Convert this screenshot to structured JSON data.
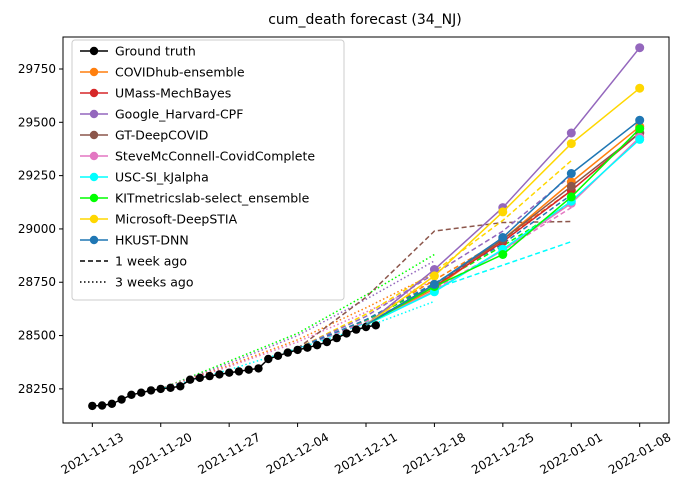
{
  "chart_data": {
    "type": "line",
    "title": "cum_death forecast (34_NJ)",
    "xlabel": "",
    "ylabel": "",
    "x_ticks": [
      "2021-11-13",
      "2021-11-20",
      "2021-11-27",
      "2021-12-04",
      "2021-12-11",
      "2021-12-18",
      "2021-12-25",
      "2022-01-01",
      "2022-01-08"
    ],
    "y_ticks": [
      28250,
      28500,
      28750,
      29000,
      29250,
      29500,
      29750
    ],
    "xlim": [
      "2021-11-10",
      "2022-01-11"
    ],
    "ylim": [
      28090,
      29900
    ],
    "grid": false,
    "legend_position": "top-left",
    "ground_truth": {
      "name": "Ground truth",
      "color": "#000000",
      "points": [
        [
          "2021-11-13",
          28170
        ],
        [
          "2021-11-14",
          28172
        ],
        [
          "2021-11-15",
          28180
        ],
        [
          "2021-11-16",
          28200
        ],
        [
          "2021-11-17",
          28222
        ],
        [
          "2021-11-18",
          28232
        ],
        [
          "2021-11-19",
          28243
        ],
        [
          "2021-11-20",
          28250
        ],
        [
          "2021-11-21",
          28255
        ],
        [
          "2021-11-22",
          28262
        ],
        [
          "2021-11-23",
          28293
        ],
        [
          "2021-11-24",
          28302
        ],
        [
          "2021-11-25",
          28310
        ],
        [
          "2021-11-26",
          28318
        ],
        [
          "2021-11-27",
          28326
        ],
        [
          "2021-11-28",
          28332
        ],
        [
          "2021-11-29",
          28340
        ],
        [
          "2021-11-30",
          28346
        ],
        [
          "2021-12-01",
          28390
        ],
        [
          "2021-12-02",
          28405
        ],
        [
          "2021-12-03",
          28420
        ],
        [
          "2021-12-04",
          28433
        ],
        [
          "2021-12-05",
          28443
        ],
        [
          "2021-12-06",
          28455
        ],
        [
          "2021-12-07",
          28470
        ],
        [
          "2021-12-08",
          28488
        ],
        [
          "2021-12-09",
          28510
        ],
        [
          "2021-12-10",
          28528
        ],
        [
          "2021-12-11",
          28540
        ],
        [
          "2021-12-12",
          28548
        ]
      ]
    },
    "forecasts": [
      {
        "name": "COVIDhub-ensemble",
        "color": "#ff7f0e",
        "points": [
          [
            "2021-12-11",
            28550
          ],
          [
            "2021-12-18",
            28720
          ],
          [
            "2021-12-25",
            28950
          ],
          [
            "2022-01-01",
            29220
          ],
          [
            "2022-01-08",
            29480
          ]
        ]
      },
      {
        "name": "UMass-MechBayes",
        "color": "#d62728",
        "points": [
          [
            "2021-12-11",
            28550
          ],
          [
            "2021-12-18",
            28730
          ],
          [
            "2021-12-25",
            28940
          ],
          [
            "2022-01-01",
            29180
          ],
          [
            "2022-01-08",
            29450
          ]
        ]
      },
      {
        "name": "Google_Harvard-CPF",
        "color": "#9467bd",
        "points": [
          [
            "2021-12-11",
            28550
          ],
          [
            "2021-12-18",
            28810
          ],
          [
            "2021-12-25",
            29100
          ],
          [
            "2022-01-01",
            29450
          ],
          [
            "2022-01-08",
            29850
          ]
        ]
      },
      {
        "name": "GT-DeepCOVID",
        "color": "#8c564b",
        "points": [
          [
            "2021-12-11",
            28550
          ],
          [
            "2021-12-18",
            28740
          ],
          [
            "2021-12-25",
            28950
          ],
          [
            "2022-01-01",
            29200
          ],
          [
            "2022-01-08",
            29450
          ]
        ]
      },
      {
        "name": "SteveMcConnell-CovidComplete",
        "color": "#e377c2",
        "points": [
          [
            "2021-12-11",
            28550
          ],
          [
            "2021-12-18",
            28710
          ],
          [
            "2021-12-25",
            28900
          ],
          [
            "2022-01-01",
            29120
          ],
          [
            "2022-01-08",
            29430
          ]
        ]
      },
      {
        "name": "USC-SI_kJalpha",
        "color": "#00ffff",
        "points": [
          [
            "2021-12-11",
            28550
          ],
          [
            "2021-12-18",
            28705
          ],
          [
            "2021-12-25",
            28905
          ],
          [
            "2022-01-01",
            29130
          ],
          [
            "2022-01-08",
            29420
          ]
        ]
      },
      {
        "name": "KITmetricslab-select_ensemble",
        "color": "#00ff00",
        "points": [
          [
            "2021-12-11",
            28550
          ],
          [
            "2021-12-18",
            28730
          ],
          [
            "2021-12-25",
            28880
          ],
          [
            "2022-01-01",
            29150
          ],
          [
            "2022-01-08",
            29470
          ]
        ]
      },
      {
        "name": "Microsoft-DeepSTIA",
        "color": "#ffd700",
        "points": [
          [
            "2021-12-11",
            28550
          ],
          [
            "2021-12-18",
            28780
          ],
          [
            "2021-12-25",
            29080
          ],
          [
            "2022-01-01",
            29400
          ],
          [
            "2022-01-08",
            29660
          ]
        ]
      },
      {
        "name": "HKUST-DNN",
        "color": "#1f77b4",
        "points": [
          [
            "2021-12-11",
            28550
          ],
          [
            "2021-12-18",
            28740
          ],
          [
            "2021-12-25",
            28960
          ],
          [
            "2022-01-01",
            29260
          ],
          [
            "2022-01-08",
            29510
          ]
        ]
      }
    ],
    "one_week_ago": [
      {
        "color": "#ff7f0e",
        "points": [
          [
            "2021-12-04",
            28440
          ],
          [
            "2021-12-11",
            28570
          ],
          [
            "2021-12-18",
            28760
          ],
          [
            "2021-12-25",
            28950
          ],
          [
            "2022-01-01",
            29180
          ]
        ]
      },
      {
        "color": "#8c564b",
        "points": [
          [
            "2021-12-04",
            28440
          ],
          [
            "2021-12-11",
            28680
          ],
          [
            "2021-12-18",
            28990
          ],
          [
            "2021-12-25",
            29030
          ],
          [
            "2022-01-01",
            29035
          ]
        ]
      },
      {
        "color": "#00ffff",
        "points": [
          [
            "2021-12-04",
            28440
          ],
          [
            "2021-12-11",
            28560
          ],
          [
            "2021-12-18",
            28720
          ],
          [
            "2021-12-25",
            28830
          ],
          [
            "2022-01-01",
            28940
          ]
        ]
      },
      {
        "color": "#ffd700",
        "points": [
          [
            "2021-12-04",
            28440
          ],
          [
            "2021-12-11",
            28600
          ],
          [
            "2021-12-18",
            28800
          ],
          [
            "2021-12-25",
            29040
          ],
          [
            "2022-01-01",
            29320
          ]
        ]
      },
      {
        "color": "#9467bd",
        "points": [
          [
            "2021-12-04",
            28440
          ],
          [
            "2021-12-11",
            28590
          ],
          [
            "2021-12-18",
            28790
          ],
          [
            "2021-12-25",
            28990
          ],
          [
            "2022-01-01",
            29250
          ]
        ]
      },
      {
        "color": "#00ff00",
        "points": [
          [
            "2021-12-04",
            28440
          ],
          [
            "2021-12-11",
            28570
          ],
          [
            "2021-12-18",
            28740
          ],
          [
            "2021-12-25",
            28920
          ],
          [
            "2022-01-01",
            29120
          ]
        ]
      },
      {
        "color": "#e377c2",
        "points": [
          [
            "2021-12-04",
            28440
          ],
          [
            "2021-12-11",
            28565
          ],
          [
            "2021-12-18",
            28720
          ],
          [
            "2021-12-25",
            28900
          ],
          [
            "2022-01-01",
            29100
          ]
        ]
      },
      {
        "color": "#1f77b4",
        "points": [
          [
            "2021-12-04",
            28440
          ],
          [
            "2021-12-11",
            28575
          ],
          [
            "2021-12-18",
            28745
          ],
          [
            "2021-12-25",
            28930
          ],
          [
            "2022-01-01",
            29160
          ]
        ]
      }
    ],
    "three_weeks_ago": [
      {
        "color": "#00ff00",
        "points": [
          [
            "2021-11-20",
            28250
          ],
          [
            "2021-11-27",
            28380
          ],
          [
            "2021-12-04",
            28510
          ],
          [
            "2021-12-11",
            28690
          ],
          [
            "2021-12-18",
            28880
          ]
        ]
      },
      {
        "color": "#9467bd",
        "points": [
          [
            "2021-11-20",
            28250
          ],
          [
            "2021-11-27",
            28370
          ],
          [
            "2021-12-04",
            28500
          ],
          [
            "2021-12-11",
            28670
          ],
          [
            "2021-12-18",
            28850
          ]
        ]
      },
      {
        "color": "#ff7f0e",
        "points": [
          [
            "2021-11-20",
            28250
          ],
          [
            "2021-11-27",
            28360
          ],
          [
            "2021-12-04",
            28480
          ],
          [
            "2021-12-11",
            28630
          ],
          [
            "2021-12-18",
            28790
          ]
        ]
      },
      {
        "color": "#e377c2",
        "points": [
          [
            "2021-11-20",
            28250
          ],
          [
            "2021-11-27",
            28355
          ],
          [
            "2021-12-04",
            28470
          ],
          [
            "2021-12-11",
            28610
          ],
          [
            "2021-12-18",
            28760
          ]
        ]
      },
      {
        "color": "#00ffff",
        "points": [
          [
            "2021-11-20",
            28250
          ],
          [
            "2021-11-27",
            28340
          ],
          [
            "2021-12-04",
            28440
          ],
          [
            "2021-12-11",
            28540
          ],
          [
            "2021-12-18",
            28660
          ]
        ]
      }
    ],
    "legend": {
      "position": "top-left",
      "entries": [
        {
          "label": "Ground truth",
          "color": "#000000",
          "style": "solid-marker"
        },
        {
          "label": "COVIDhub-ensemble",
          "color": "#ff7f0e",
          "style": "solid-marker"
        },
        {
          "label": "UMass-MechBayes",
          "color": "#d62728",
          "style": "solid-marker"
        },
        {
          "label": "Google_Harvard-CPF",
          "color": "#9467bd",
          "style": "solid-marker"
        },
        {
          "label": "GT-DeepCOVID",
          "color": "#8c564b",
          "style": "solid-marker"
        },
        {
          "label": "SteveMcConnell-CovidComplete",
          "color": "#e377c2",
          "style": "solid-marker"
        },
        {
          "label": "USC-SI_kJalpha",
          "color": "#00ffff",
          "style": "solid-marker"
        },
        {
          "label": "KITmetricslab-select_ensemble",
          "color": "#00ff00",
          "style": "solid-marker"
        },
        {
          "label": "Microsoft-DeepSTIA",
          "color": "#ffd700",
          "style": "solid-marker"
        },
        {
          "label": "HKUST-DNN",
          "color": "#1f77b4",
          "style": "solid-marker"
        },
        {
          "label": "1 week ago",
          "color": "#000000",
          "style": "dashed"
        },
        {
          "label": "3 weeks ago",
          "color": "#000000",
          "style": "dotted"
        }
      ]
    }
  }
}
